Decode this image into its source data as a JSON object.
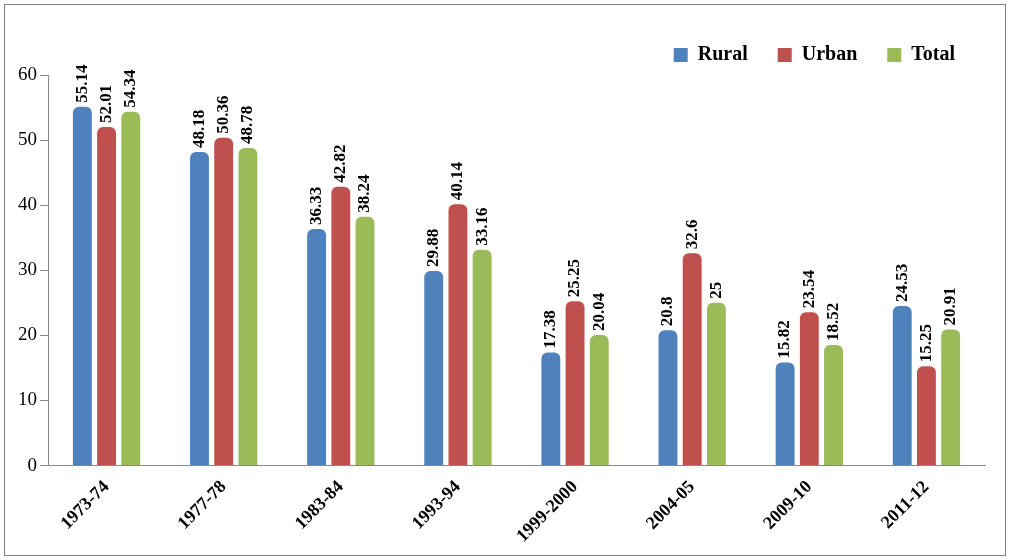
{
  "chart_data": {
    "type": "bar",
    "categories": [
      "1973-74",
      "1977-78",
      "1983-84",
      "1993-94",
      "1999-2000",
      "2004-05",
      "2009-10",
      "2011-12"
    ],
    "series": [
      {
        "name": "Rural",
        "color": "#4f81bd",
        "values": [
          55.14,
          48.18,
          36.33,
          29.88,
          17.38,
          20.8,
          15.82,
          24.53
        ]
      },
      {
        "name": "Urban",
        "color": "#c0504d",
        "values": [
          52.01,
          50.36,
          42.82,
          40.14,
          25.25,
          32.6,
          23.54,
          15.25
        ]
      },
      {
        "name": "Total",
        "color": "#9bbb59",
        "values": [
          54.34,
          48.78,
          38.24,
          33.16,
          20.04,
          25,
          18.52,
          20.91
        ]
      }
    ],
    "ylim": [
      0,
      60
    ],
    "yticks": [
      0,
      10,
      20,
      30,
      40,
      50,
      60
    ],
    "grid": false,
    "legend": "top right",
    "data_labels": true
  }
}
